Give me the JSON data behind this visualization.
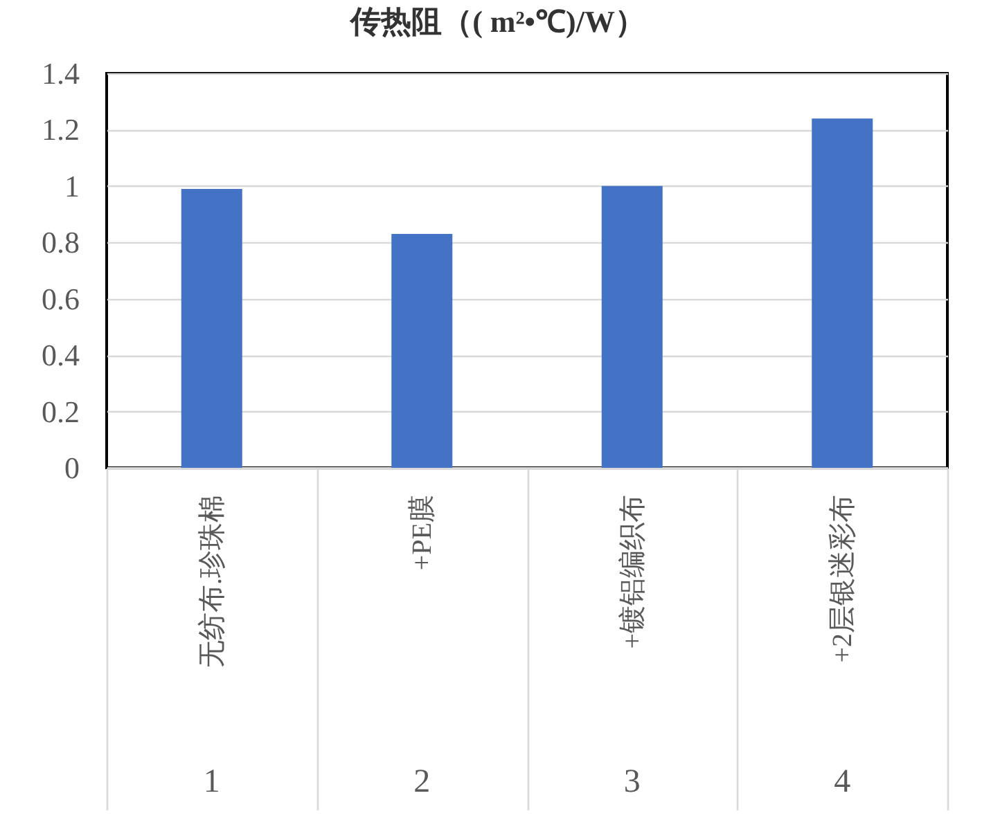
{
  "chart_data": {
    "type": "bar",
    "title": "传热阻（( m²•℃)/W）",
    "categories": [
      "无纺布.珍珠棉",
      "+PE膜",
      "+镀铝编织布",
      "+2层银迷彩布"
    ],
    "values": [
      0.99,
      0.83,
      1.0,
      1.24
    ],
    "color": "#4472c4",
    "ylim": [
      0,
      1.4
    ],
    "yticks": [
      0,
      0.2,
      0.4,
      0.6,
      0.8,
      1,
      1.2,
      1.4
    ],
    "grid": "y",
    "annotations": [
      "1",
      "2",
      "3",
      "4"
    ]
  }
}
